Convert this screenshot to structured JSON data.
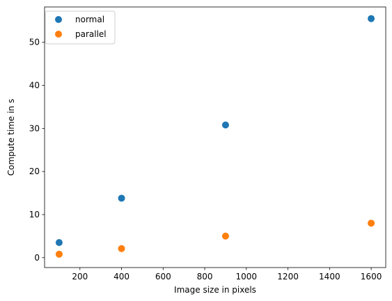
{
  "chart_data": {
    "type": "scatter",
    "title": "",
    "xlabel": "Image size in pixels",
    "ylabel": "Compute time in s",
    "xlim": [
      30,
      1670
    ],
    "ylim": [
      -2.3,
      58.2
    ],
    "xticks": [
      200,
      400,
      600,
      800,
      1000,
      1200,
      1400,
      1600
    ],
    "yticks": [
      0,
      10,
      20,
      30,
      40,
      50
    ],
    "grid": false,
    "legend_position": "upper-left",
    "series": [
      {
        "name": "normal",
        "color": "#1f77b4",
        "x": [
          100,
          400,
          900,
          1600
        ],
        "y": [
          3.5,
          13.8,
          30.8,
          55.5
        ]
      },
      {
        "name": "parallel",
        "color": "#ff7f0e",
        "x": [
          100,
          400,
          900,
          1600
        ],
        "y": [
          0.8,
          2.1,
          5.0,
          8.0
        ]
      }
    ]
  }
}
